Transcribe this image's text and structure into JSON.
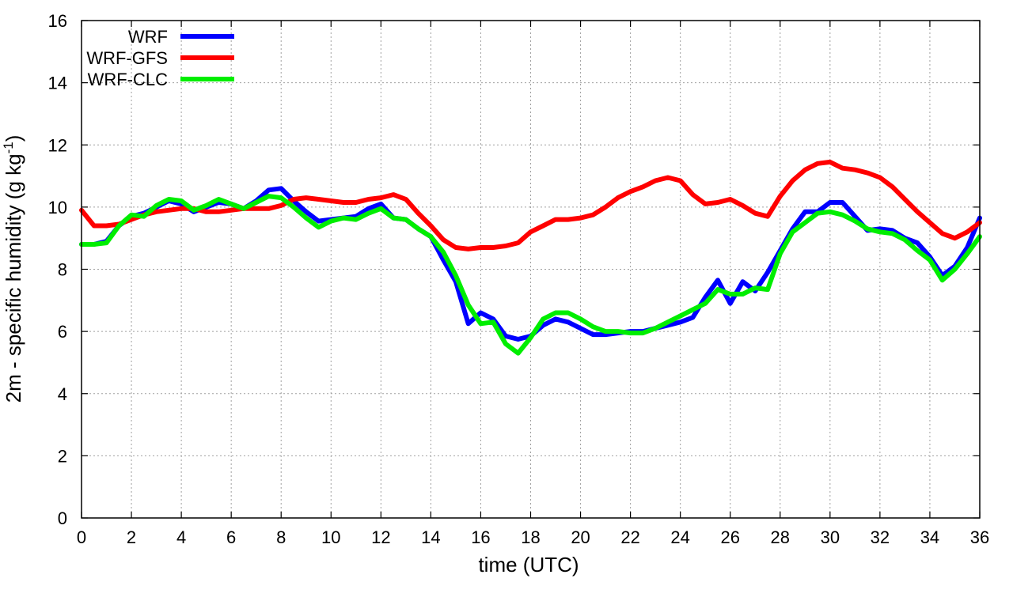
{
  "chart_data": {
    "type": "line",
    "xlabel": "time (UTC)",
    "ylabel_prefix": "2m - specific humidity (g kg",
    "ylabel_sup": "-1",
    "ylabel_suffix": ")",
    "xlim": [
      0,
      36
    ],
    "ylim": [
      0,
      16
    ],
    "xticks": [
      0,
      2,
      4,
      6,
      8,
      10,
      12,
      14,
      16,
      18,
      20,
      22,
      24,
      26,
      28,
      30,
      32,
      34,
      36
    ],
    "yticks": [
      0,
      2,
      4,
      6,
      8,
      10,
      12,
      14,
      16
    ],
    "grid": true,
    "legend_position": "top-left",
    "series": [
      {
        "name": "WRF",
        "color": "#0000ff",
        "x": [
          0,
          0.5,
          1,
          1.5,
          2,
          2.5,
          3,
          3.5,
          4,
          4.5,
          5,
          5.5,
          6,
          6.5,
          7,
          7.5,
          8,
          8.5,
          9,
          9.5,
          10,
          10.5,
          11,
          11.5,
          12,
          12.5,
          13,
          13.5,
          14,
          14.5,
          15,
          15.5,
          16,
          16.5,
          17,
          17.5,
          18,
          18.5,
          19,
          19.5,
          20,
          20.5,
          21,
          21.5,
          22,
          22.5,
          23,
          23.5,
          24,
          24.5,
          25,
          25.5,
          26,
          26.5,
          27,
          27.5,
          28,
          28.5,
          29,
          29.5,
          30,
          30.5,
          31,
          31.5,
          32,
          32.5,
          33,
          33.5,
          34,
          34.5,
          35,
          35.5,
          36
        ],
        "values": [
          8.8,
          8.8,
          8.9,
          9.4,
          9.7,
          9.8,
          10.0,
          10.2,
          10.1,
          9.85,
          10.0,
          10.15,
          10.1,
          9.95,
          10.2,
          10.55,
          10.6,
          10.2,
          9.85,
          9.55,
          9.6,
          9.65,
          9.7,
          9.95,
          10.1,
          9.65,
          9.6,
          9.3,
          9.05,
          8.3,
          7.6,
          6.25,
          6.6,
          6.4,
          5.85,
          5.75,
          5.85,
          6.2,
          6.4,
          6.3,
          6.1,
          5.9,
          5.9,
          5.95,
          6.0,
          6.0,
          6.1,
          6.2,
          6.3,
          6.45,
          7.1,
          7.65,
          6.9,
          7.6,
          7.3,
          7.9,
          8.6,
          9.3,
          9.85,
          9.85,
          10.15,
          10.15,
          9.7,
          9.25,
          9.3,
          9.25,
          9.0,
          8.85,
          8.4,
          7.8,
          8.1,
          8.7,
          9.65
        ]
      },
      {
        "name": "WRF-GFS",
        "color": "#ff0000",
        "x": [
          0,
          0.5,
          1,
          1.5,
          2,
          2.5,
          3,
          3.5,
          4,
          4.5,
          5,
          5.5,
          6,
          6.5,
          7,
          7.5,
          8,
          8.5,
          9,
          9.5,
          10,
          10.5,
          11,
          11.5,
          12,
          12.5,
          13,
          13.5,
          14,
          14.5,
          15,
          15.5,
          16,
          16.5,
          17,
          17.5,
          18,
          18.5,
          19,
          19.5,
          20,
          20.5,
          21,
          21.5,
          22,
          22.5,
          23,
          23.5,
          24,
          24.5,
          25,
          25.5,
          26,
          26.5,
          27,
          27.5,
          28,
          28.5,
          29,
          29.5,
          30,
          30.5,
          31,
          31.5,
          32,
          32.5,
          33,
          33.5,
          34,
          34.5,
          35,
          35.5,
          36
        ],
        "values": [
          9.9,
          9.4,
          9.4,
          9.45,
          9.6,
          9.75,
          9.85,
          9.9,
          9.95,
          9.95,
          9.85,
          9.85,
          9.9,
          9.95,
          9.95,
          9.95,
          10.05,
          10.25,
          10.3,
          10.25,
          10.2,
          10.15,
          10.15,
          10.25,
          10.3,
          10.4,
          10.25,
          9.8,
          9.4,
          8.95,
          8.7,
          8.65,
          8.7,
          8.7,
          8.75,
          8.85,
          9.2,
          9.4,
          9.6,
          9.6,
          9.65,
          9.75,
          10.0,
          10.3,
          10.5,
          10.65,
          10.85,
          10.95,
          10.85,
          10.4,
          10.1,
          10.15,
          10.25,
          10.05,
          9.8,
          9.7,
          10.35,
          10.85,
          11.2,
          11.4,
          11.45,
          11.25,
          11.2,
          11.1,
          10.95,
          10.65,
          10.25,
          9.85,
          9.5,
          9.15,
          9.0,
          9.2,
          9.5
        ]
      },
      {
        "name": "WRF-CLC",
        "color": "#00ee00",
        "x": [
          0,
          0.5,
          1,
          1.5,
          2,
          2.5,
          3,
          3.5,
          4,
          4.5,
          5,
          5.5,
          6,
          6.5,
          7,
          7.5,
          8,
          8.5,
          9,
          9.5,
          10,
          10.5,
          11,
          11.5,
          12,
          12.5,
          13,
          13.5,
          14,
          14.5,
          15,
          15.5,
          16,
          16.5,
          17,
          17.5,
          18,
          18.5,
          19,
          19.5,
          20,
          20.5,
          21,
          21.5,
          22,
          22.5,
          23,
          23.5,
          24,
          24.5,
          25,
          25.5,
          26,
          26.5,
          27,
          27.5,
          28,
          28.5,
          29,
          29.5,
          30,
          30.5,
          31,
          31.5,
          32,
          32.5,
          33,
          33.5,
          34,
          34.5,
          35,
          35.5,
          36
        ],
        "values": [
          8.8,
          8.8,
          8.85,
          9.4,
          9.75,
          9.7,
          10.05,
          10.25,
          10.2,
          9.9,
          10.05,
          10.25,
          10.1,
          9.95,
          10.15,
          10.35,
          10.3,
          10.0,
          9.65,
          9.35,
          9.55,
          9.65,
          9.6,
          9.8,
          9.95,
          9.65,
          9.6,
          9.3,
          9.05,
          8.55,
          7.8,
          6.85,
          6.25,
          6.3,
          5.6,
          5.3,
          5.8,
          6.4,
          6.6,
          6.6,
          6.4,
          6.15,
          6.0,
          6.0,
          5.95,
          5.95,
          6.1,
          6.3,
          6.5,
          6.7,
          6.9,
          7.35,
          7.2,
          7.2,
          7.4,
          7.35,
          8.5,
          9.2,
          9.5,
          9.8,
          9.85,
          9.75,
          9.55,
          9.3,
          9.2,
          9.15,
          8.95,
          8.6,
          8.3,
          7.65,
          8.0,
          8.5,
          9.05
        ]
      }
    ]
  }
}
